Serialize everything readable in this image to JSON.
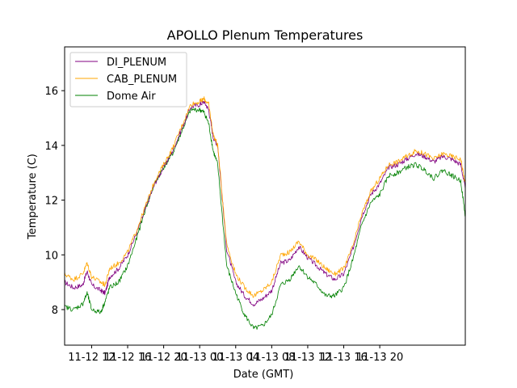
{
  "chart_data": {
    "type": "line",
    "title": "APOLLO Plenum Temperatures",
    "xlabel": "Date (GMT)",
    "ylabel": "Temperature (C)",
    "x_unit": "hours since 11-12 09:00 GMT",
    "xlim": [
      0,
      44.5
    ],
    "ylim": [
      6.7,
      17.6
    ],
    "xticks": [
      {
        "x": 3,
        "label": "11-12 12"
      },
      {
        "x": 7,
        "label": "11-12 16"
      },
      {
        "x": 11,
        "label": "11-12 20"
      },
      {
        "x": 15,
        "label": "11-13 00"
      },
      {
        "x": 19,
        "label": "11-13 04"
      },
      {
        "x": 23,
        "label": "11-13 08"
      },
      {
        "x": 27,
        "label": "11-13 12"
      },
      {
        "x": 31,
        "label": "11-13 16"
      },
      {
        "x": 35,
        "label": "11-13 20"
      }
    ],
    "yticks": [
      8,
      10,
      12,
      14,
      16
    ],
    "legend_position": "upper-left",
    "series": [
      {
        "name": "DI_PLENUM",
        "color": "#800080",
        "x": [
          0,
          1,
          2,
          2.5,
          3,
          4,
          4.5,
          5,
          6,
          7,
          8,
          9,
          10,
          11,
          12,
          13,
          14,
          15,
          15.5,
          16,
          16.5,
          17,
          18,
          19,
          20,
          21,
          22,
          23,
          24,
          25,
          26,
          27,
          28,
          29,
          30,
          31,
          32,
          33,
          34,
          35,
          36,
          37,
          38,
          39,
          40,
          41,
          42,
          43,
          44,
          44.5
        ],
        "values": [
          9.0,
          8.8,
          8.9,
          9.4,
          8.9,
          8.7,
          8.6,
          9.2,
          9.5,
          10.0,
          10.8,
          11.7,
          12.6,
          13.2,
          13.8,
          14.6,
          15.4,
          15.5,
          15.6,
          15.3,
          14.3,
          14.0,
          10.2,
          9.0,
          8.5,
          8.2,
          8.4,
          8.7,
          9.7,
          9.8,
          10.3,
          9.9,
          9.6,
          9.3,
          9.1,
          9.3,
          10.2,
          11.4,
          12.2,
          12.6,
          13.2,
          13.3,
          13.5,
          13.7,
          13.6,
          13.4,
          13.6,
          13.5,
          13.3,
          12.4
        ]
      },
      {
        "name": "CAB_PLENUM",
        "color": "#ffa500",
        "x": [
          0,
          1,
          2,
          2.5,
          3,
          4,
          4.5,
          5,
          6,
          7,
          8,
          9,
          10,
          11,
          12,
          13,
          14,
          15,
          15.5,
          16,
          16.5,
          17,
          18,
          19,
          20,
          21,
          22,
          23,
          24,
          25,
          26,
          27,
          28,
          29,
          30,
          31,
          32,
          33,
          34,
          35,
          36,
          37,
          38,
          39,
          40,
          41,
          42,
          43,
          44,
          44.5
        ],
        "values": [
          9.3,
          9.1,
          9.3,
          9.7,
          9.2,
          9.0,
          8.9,
          9.5,
          9.7,
          10.1,
          10.9,
          11.8,
          12.7,
          13.3,
          13.9,
          14.7,
          15.5,
          15.6,
          15.7,
          15.5,
          14.4,
          14.0,
          10.4,
          9.3,
          8.8,
          8.5,
          8.7,
          9.0,
          10.0,
          10.1,
          10.5,
          10.0,
          9.8,
          9.5,
          9.3,
          9.5,
          10.3,
          11.5,
          12.3,
          12.8,
          13.3,
          13.4,
          13.6,
          13.8,
          13.7,
          13.5,
          13.7,
          13.6,
          13.5,
          12.6
        ]
      },
      {
        "name": "Dome Air",
        "color": "#008000",
        "x": [
          0,
          1,
          2,
          2.5,
          3,
          4,
          4.5,
          5,
          6,
          7,
          8,
          9,
          10,
          11,
          12,
          13,
          14,
          15,
          15.5,
          16,
          16.5,
          17,
          18,
          19,
          20,
          21,
          22,
          23,
          24,
          25,
          26,
          27,
          28,
          29,
          30,
          31,
          32,
          33,
          34,
          35,
          36,
          37,
          38,
          39,
          40,
          41,
          42,
          43,
          44,
          44.5
        ],
        "values": [
          8.1,
          8.0,
          8.2,
          8.6,
          8.0,
          7.9,
          8.3,
          8.8,
          9.0,
          9.6,
          10.6,
          11.7,
          12.6,
          13.2,
          13.7,
          14.5,
          15.3,
          15.3,
          15.2,
          14.8,
          13.8,
          13.3,
          9.6,
          8.6,
          7.8,
          7.3,
          7.4,
          7.8,
          8.9,
          9.1,
          9.6,
          9.2,
          8.9,
          8.5,
          8.5,
          8.8,
          9.8,
          11.1,
          11.9,
          12.2,
          12.9,
          13.0,
          13.2,
          13.3,
          13.1,
          12.8,
          13.1,
          12.9,
          12.7,
          11.4
        ]
      }
    ]
  }
}
